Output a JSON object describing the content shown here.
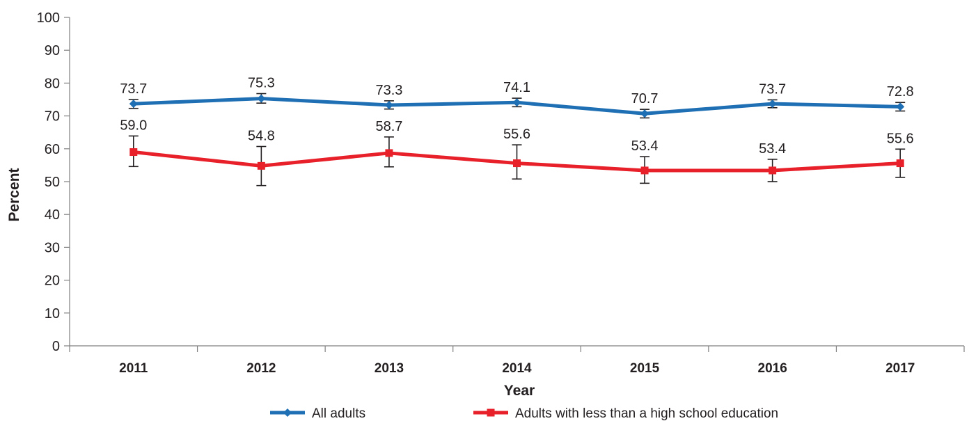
{
  "chart_data": {
    "type": "line",
    "categories": [
      "2011",
      "2012",
      "2013",
      "2014",
      "2015",
      "2016",
      "2017"
    ],
    "xlabel": "Year",
    "ylabel": "Percent",
    "ylim": [
      0,
      100
    ],
    "yticks": [
      "0",
      "10",
      "20",
      "30",
      "40",
      "50",
      "60",
      "70",
      "80",
      "90",
      "100"
    ],
    "grid": false,
    "legend_position": "bottom",
    "series": [
      {
        "name": "All adults",
        "color": "#1f6fb4",
        "marker": "diamond",
        "values": [
          73.7,
          75.3,
          73.3,
          74.1,
          70.7,
          73.7,
          72.8
        ],
        "labels": [
          "73.7",
          "75.3",
          "73.3",
          "74.1",
          "70.7",
          "73.7",
          "72.8"
        ],
        "err_low": [
          72.3,
          73.9,
          72.1,
          72.8,
          69.4,
          72.5,
          71.5
        ],
        "err_high": [
          75.0,
          76.8,
          74.6,
          75.4,
          72.0,
          74.9,
          74.1
        ]
      },
      {
        "name": "Adults with less than a high school education",
        "color": "#e8202a",
        "marker": "square",
        "values": [
          59.0,
          54.8,
          58.7,
          55.6,
          53.4,
          53.4,
          55.6
        ],
        "labels": [
          "59.0",
          "54.8",
          "58.7",
          "55.6",
          "53.4",
          "53.4",
          "55.6"
        ],
        "err_low": [
          54.6,
          48.8,
          54.5,
          50.8,
          49.5,
          50.0,
          51.3
        ],
        "err_high": [
          63.9,
          60.7,
          63.6,
          61.2,
          57.6,
          56.8,
          59.9
        ]
      }
    ]
  }
}
